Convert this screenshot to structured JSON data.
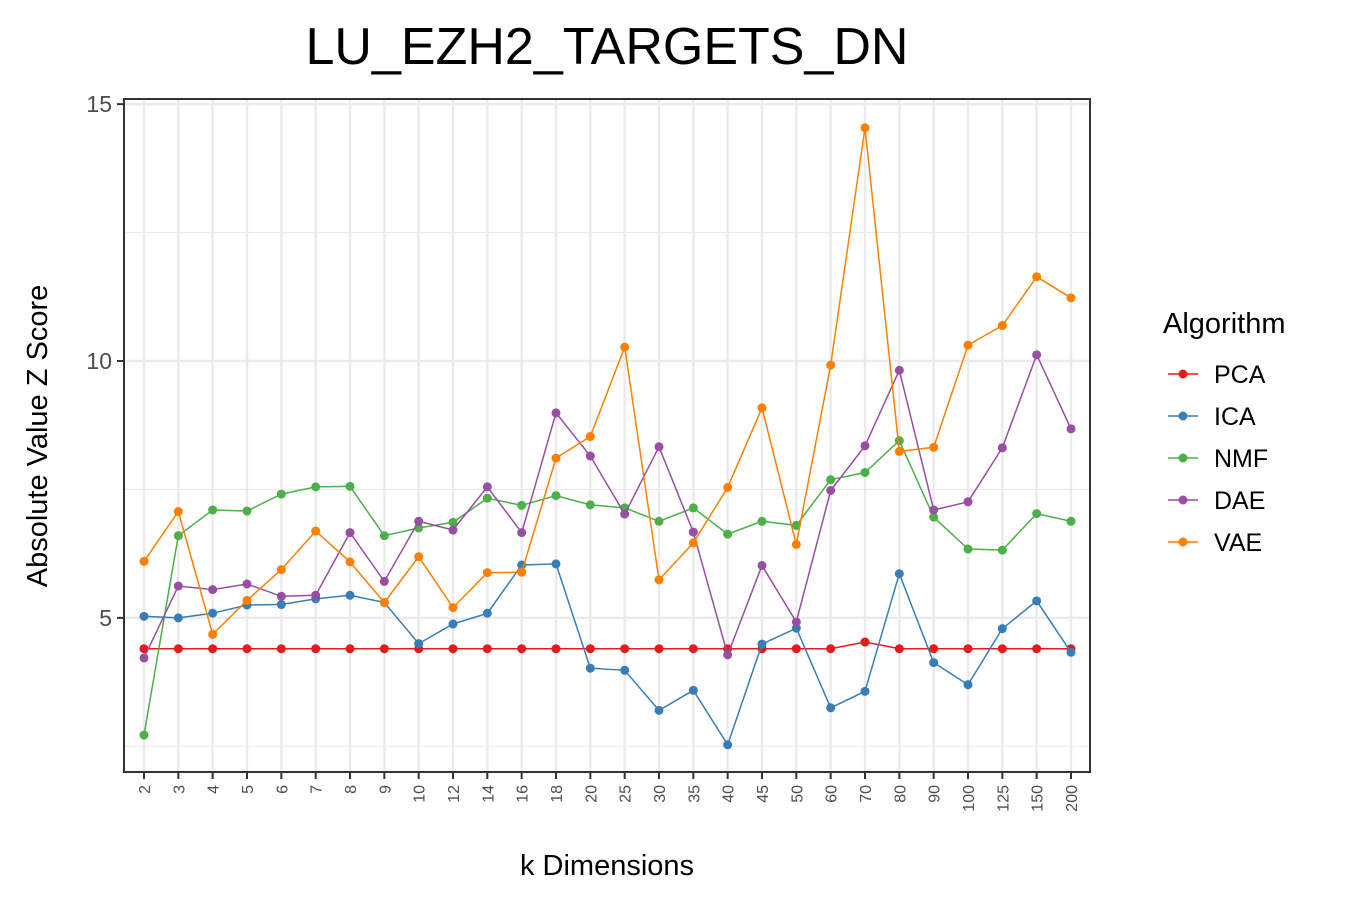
{
  "chart_data": {
    "type": "line",
    "title": "LU_EZH2_TARGETS_DN",
    "xlabel": "k Dimensions",
    "ylabel": "Absolute Value Z Score",
    "categories": [
      "2",
      "3",
      "4",
      "5",
      "6",
      "7",
      "8",
      "9",
      "10",
      "12",
      "14",
      "16",
      "18",
      "20",
      "25",
      "30",
      "35",
      "40",
      "45",
      "50",
      "60",
      "70",
      "80",
      "90",
      "100",
      "125",
      "150",
      "200"
    ],
    "yticks": [
      "5",
      "10",
      "15"
    ],
    "ylim": [
      2.0,
      15.1
    ],
    "grid": true,
    "legend": {
      "title": "Algorithm",
      "position": "right"
    },
    "series": [
      {
        "name": "PCA",
        "color": "#e41a1c",
        "values": [
          4.4,
          4.4,
          4.4,
          4.4,
          4.4,
          4.4,
          4.4,
          4.4,
          4.4,
          4.4,
          4.4,
          4.4,
          4.4,
          4.4,
          4.4,
          4.4,
          4.4,
          4.4,
          4.4,
          4.4,
          4.4,
          4.53,
          4.4,
          4.4,
          4.4,
          4.4,
          4.4,
          4.4
        ]
      },
      {
        "name": "ICA",
        "color": "#377eb8",
        "values": [
          5.03,
          5.0,
          5.09,
          5.25,
          5.26,
          5.37,
          5.44,
          5.3,
          4.5,
          4.88,
          5.09,
          6.03,
          6.05,
          4.02,
          3.98,
          3.2,
          3.59,
          2.53,
          4.49,
          4.8,
          3.25,
          3.57,
          5.86,
          4.13,
          3.7,
          4.79,
          5.33,
          4.33
        ]
      },
      {
        "name": "NMF",
        "color": "#4daf4a",
        "values": [
          2.72,
          6.6,
          7.1,
          7.08,
          7.41,
          7.55,
          7.56,
          6.6,
          6.75,
          6.86,
          7.33,
          7.19,
          7.38,
          7.2,
          7.14,
          6.88,
          7.14,
          6.63,
          6.88,
          6.8,
          7.69,
          7.83,
          8.45,
          6.96,
          6.34,
          6.32,
          7.03,
          6.88
        ]
      },
      {
        "name": "DAE",
        "color": "#984ea3",
        "values": [
          4.22,
          5.62,
          5.55,
          5.66,
          5.42,
          5.44,
          6.66,
          5.71,
          6.88,
          6.71,
          7.55,
          6.66,
          8.99,
          8.15,
          7.02,
          8.33,
          6.67,
          4.28,
          6.02,
          4.92,
          7.48,
          8.35,
          9.82,
          7.1,
          7.26,
          8.31,
          10.12,
          8.68
        ]
      },
      {
        "name": "VAE",
        "color": "#ff7f00",
        "values": [
          6.1,
          7.07,
          4.68,
          5.34,
          5.94,
          6.69,
          6.09,
          5.3,
          6.19,
          5.2,
          5.88,
          5.89,
          8.11,
          8.53,
          10.27,
          5.74,
          6.46,
          7.54,
          9.09,
          6.43,
          9.92,
          14.54,
          8.24,
          8.32,
          10.31,
          10.69,
          11.64,
          11.23
        ]
      }
    ]
  }
}
